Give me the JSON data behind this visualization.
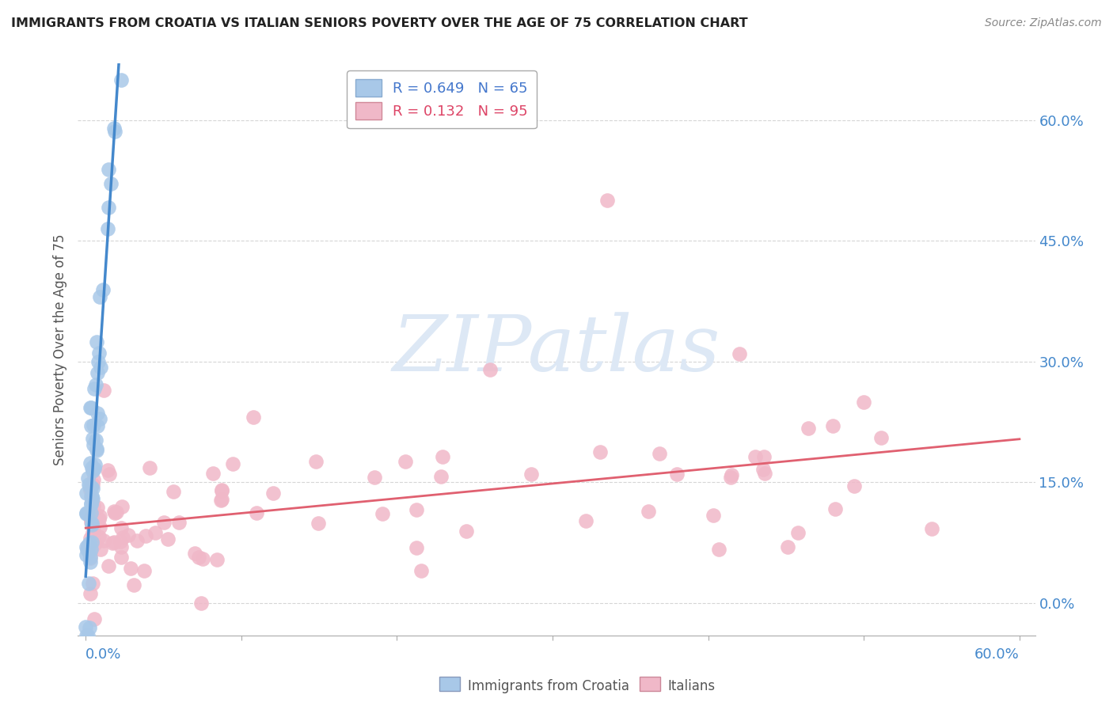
{
  "title": "IMMIGRANTS FROM CROATIA VS ITALIAN SENIORS POVERTY OVER THE AGE OF 75 CORRELATION CHART",
  "source": "Source: ZipAtlas.com",
  "ylabel": "Seniors Poverty Over the Age of 75",
  "ytick_vals": [
    0.0,
    0.15,
    0.3,
    0.45,
    0.6
  ],
  "ytick_labels": [
    "0.0%",
    "15.0%",
    "30.0%",
    "45.0%",
    "60.0%"
  ],
  "xlim": [
    -0.005,
    0.61
  ],
  "ylim": [
    -0.04,
    0.67
  ],
  "legend_label_blue": "R = 0.649   N = 65",
  "legend_label_pink": "R = 0.132   N = 95",
  "legend_text_blue": "#4477cc",
  "legend_text_pink": "#dd4466",
  "watermark_text": "ZIPatlas",
  "watermark_color": "#dde8f5",
  "background_color": "#ffffff",
  "grid_color": "#cccccc",
  "blue_scatter_color": "#a8c8e8",
  "pink_scatter_color": "#f0b8c8",
  "blue_line_color": "#4488cc",
  "pink_line_color": "#e06070",
  "bottom_label_blue": "Immigrants from Croatia",
  "bottom_label_pink": "Italians",
  "bottom_label_blue_color": "#a8c8e8",
  "bottom_label_pink_color": "#f0b8c8",
  "ytick_color": "#4488cc",
  "xtick_left_label": "0.0%",
  "xtick_right_label": "60.0%",
  "xtick_color": "#4488cc"
}
